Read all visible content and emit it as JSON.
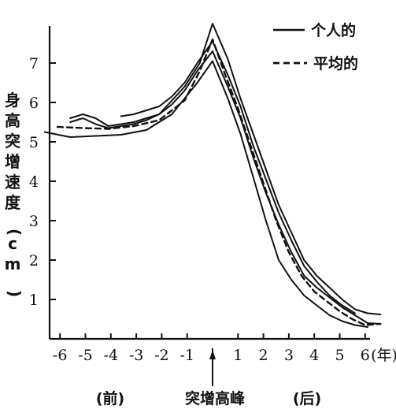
{
  "chart_data": {
    "type": "line",
    "title": "",
    "ylabel": "身高突增速度(cm)",
    "xlabel": "",
    "x_unit_label": "(年)",
    "xlim": [
      -7,
      7
    ],
    "ylim": [
      0,
      8
    ],
    "y_ticks": [
      "1",
      "2",
      "3",
      "4",
      "5",
      "6",
      "7"
    ],
    "x_ticks": [
      "-6",
      "-5",
      "-4",
      "-3",
      "-2",
      "-1",
      "1",
      "2",
      "3",
      "4",
      "5",
      "6"
    ],
    "grid": false,
    "legend": {
      "position": "top-right",
      "entries": [
        "个人的",
        "平均的"
      ]
    },
    "annotations": {
      "peak_marker": "突增高峰",
      "before": "(前)",
      "after": "(后)"
    },
    "series": [
      {
        "name": "个人的",
        "style": "solid",
        "x": [
          -6.6,
          -5.6,
          -4.6,
          -3.6,
          -2.6,
          -1.6,
          -0.6,
          0.0,
          0.6,
          1.1,
          1.6,
          2.1,
          2.6,
          3.1,
          3.6,
          4.1,
          4.6,
          5.1,
          5.6,
          6.1
        ],
        "y": [
          5.25,
          5.12,
          5.15,
          5.18,
          5.3,
          5.7,
          6.5,
          7.05,
          6.1,
          5.2,
          4.1,
          3.0,
          2.0,
          1.5,
          1.1,
          0.85,
          0.6,
          0.45,
          0.35,
          0.3
        ]
      },
      {
        "name": "个人的",
        "style": "solid",
        "x": [
          -5.6,
          -5.1,
          -4.6,
          -4.1,
          -3.6,
          -3.1,
          -2.6,
          -2.1,
          -1.6,
          -1.1,
          -0.6,
          0.0,
          0.6,
          1.1,
          1.6,
          2.1,
          2.6,
          3.1,
          3.6,
          4.1,
          4.6,
          5.1,
          5.6,
          6.1,
          6.6
        ],
        "y": [
          5.5,
          5.6,
          5.45,
          5.35,
          5.4,
          5.45,
          5.55,
          5.7,
          5.95,
          6.3,
          6.8,
          7.3,
          6.4,
          5.6,
          4.6,
          3.7,
          2.9,
          2.2,
          1.6,
          1.3,
          1.05,
          0.8,
          0.6,
          0.4,
          0.38
        ]
      },
      {
        "name": "个人的",
        "style": "solid",
        "x": [
          -3.6,
          -3.1,
          -2.6,
          -2.1,
          -1.6,
          -1.1,
          -0.6,
          0.0,
          0.6,
          1.1,
          1.6,
          2.1,
          2.6,
          3.1,
          3.6,
          4.1,
          4.6,
          5.1,
          5.6
        ],
        "y": [
          5.65,
          5.7,
          5.8,
          5.9,
          6.15,
          6.5,
          7.0,
          7.55,
          6.7,
          5.9,
          4.9,
          4.05,
          3.2,
          2.5,
          1.85,
          1.45,
          1.1,
          0.85,
          0.65
        ]
      },
      {
        "name": "个人的",
        "style": "solid",
        "x": [
          -5.6,
          -5.1,
          -4.6,
          -4.1,
          -3.1,
          -2.1,
          -1.1,
          -0.5,
          0.0,
          0.6,
          1.1,
          1.6,
          2.1,
          2.6,
          3.1,
          3.6,
          4.1,
          4.6,
          5.1,
          5.6,
          6.1,
          6.6
        ],
        "y": [
          5.6,
          5.7,
          5.6,
          5.4,
          5.5,
          5.7,
          6.4,
          7.0,
          8.0,
          7.1,
          6.1,
          5.2,
          4.3,
          3.4,
          2.7,
          2.0,
          1.6,
          1.3,
          1.0,
          0.75,
          0.65,
          0.62
        ]
      },
      {
        "name": "平均的",
        "style": "dashed",
        "x": [
          -6.1,
          -5.1,
          -4.1,
          -3.1,
          -2.1,
          -1.1,
          -0.5,
          0.0,
          0.5,
          1.0,
          1.5,
          2.0,
          2.5,
          3.0,
          3.5,
          4.0,
          4.5,
          5.0,
          5.5,
          6.0,
          6.6
        ],
        "y": [
          5.38,
          5.35,
          5.33,
          5.4,
          5.55,
          6.05,
          6.8,
          7.6,
          6.7,
          5.85,
          4.9,
          3.95,
          3.0,
          2.2,
          1.6,
          1.2,
          0.95,
          0.7,
          0.5,
          0.35,
          0.38
        ]
      }
    ]
  }
}
